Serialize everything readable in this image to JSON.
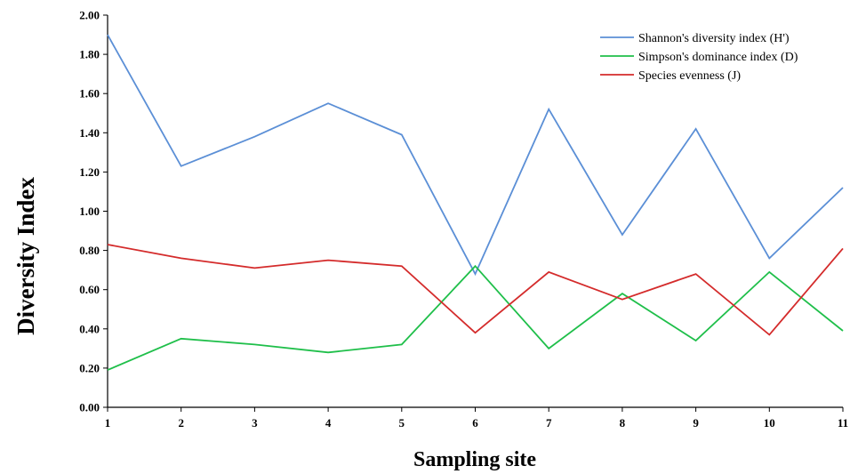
{
  "chart_data": {
    "type": "line",
    "title": "",
    "xlabel": "Sampling site",
    "ylabel": "Diversity Index",
    "x": [
      "1",
      "2",
      "3",
      "4",
      "5",
      "6",
      "7",
      "8",
      "9",
      "10",
      "11"
    ],
    "yticks": [
      "0.00",
      "0.20",
      "0.40",
      "0.60",
      "0.80",
      "1.00",
      "1.20",
      "1.40",
      "1.60",
      "1.80",
      "2.00"
    ],
    "ylim": [
      0,
      2
    ],
    "grid": false,
    "legend_position": "top-right",
    "series": [
      {
        "name": "Shannon's diversity index (H')",
        "color": "#5b8fd6",
        "values": [
          1.9,
          1.23,
          1.38,
          1.55,
          1.39,
          0.68,
          1.52,
          0.88,
          1.42,
          0.76,
          1.12
        ]
      },
      {
        "name": "Simpson's dominance index (D)",
        "color": "#1fbf4a",
        "values": [
          0.19,
          0.35,
          0.32,
          0.28,
          0.32,
          0.72,
          0.3,
          0.58,
          0.34,
          0.69,
          0.39
        ]
      },
      {
        "name": "Species evenness (J)",
        "color": "#d42b2b",
        "values": [
          0.83,
          0.76,
          0.71,
          0.75,
          0.72,
          0.38,
          0.69,
          0.55,
          0.68,
          0.37,
          0.81
        ]
      }
    ]
  }
}
